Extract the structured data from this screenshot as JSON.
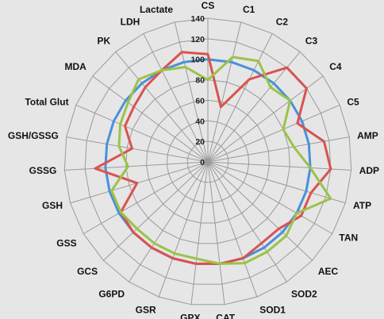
{
  "chart_data": {
    "type": "radar",
    "categories": [
      "CS",
      "C1",
      "C2",
      "C3",
      "C4",
      "C5",
      "AMP",
      "ADP",
      "ATP",
      "TAN",
      "AEC",
      "SOD2",
      "SOD1",
      "CAT",
      "GPX",
      "GSR",
      "G6PD",
      "GCS",
      "GSS",
      "GSH",
      "GSSG",
      "GSH/GSSG",
      "Total Glut",
      "MDA",
      "PK",
      "LDH",
      "Lactate"
    ],
    "rlim": [
      0,
      140
    ],
    "ticks": [
      0,
      20,
      40,
      60,
      80,
      100,
      120,
      140
    ],
    "grid": true,
    "legend": "none",
    "series": [
      {
        "color": "#4a90d9",
        "values": [
          100,
          100,
          100,
          100,
          100,
          100,
          100,
          100,
          100,
          100,
          100,
          100,
          100,
          100,
          100,
          100,
          100,
          100,
          100,
          100,
          100,
          100,
          100,
          100,
          100,
          100,
          100
        ]
      },
      {
        "color": "#d9534f",
        "values": [
          105,
          55,
          90,
          120,
          120,
          95,
          115,
          120,
          105,
          105,
          95,
          95,
          100,
          100,
          100,
          100,
          100,
          100,
          98,
          72,
          110,
          75,
          88,
          90,
          95,
          100,
          110
        ]
      },
      {
        "color": "#9bc348",
        "values": [
          80,
          105,
          110,
          95,
          100,
          80,
          85,
          100,
          125,
          100,
          105,
          105,
          105,
          100,
          95,
          95,
          95,
          95,
          98,
          98,
          78,
          88,
          93,
          97,
          105,
          100,
          95
        ]
      }
    ]
  }
}
